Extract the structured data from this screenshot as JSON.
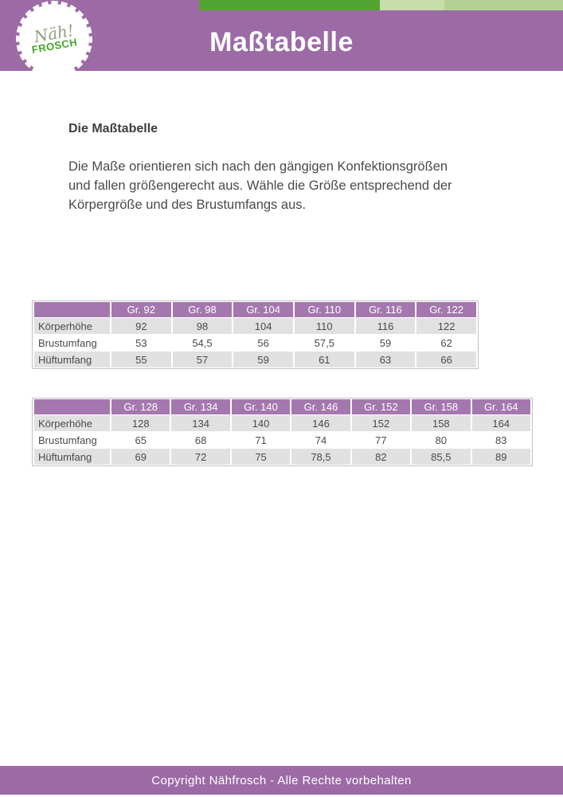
{
  "header": {
    "title": "Maßtabelle",
    "logo": {
      "line1": "Näh!",
      "line2": "FROSCH"
    }
  },
  "content": {
    "heading": "Die Maßtabelle",
    "paragraph_lines": [
      "Die Maße orientieren sich nach den gängigen Konfektionsgrößen",
      "und fallen größengerecht aus. Wähle die Größe entsprechend der",
      "Körpergröße und des Brustumfangs aus."
    ]
  },
  "tables": [
    {
      "columns": [
        "",
        "Gr. 92",
        "Gr. 98",
        "Gr. 104",
        "Gr. 110",
        "Gr. 116",
        "Gr. 122"
      ],
      "rows": [
        {
          "label": "Körperhöhe",
          "values": [
            "92",
            "98",
            "104",
            "110",
            "116",
            "122"
          ]
        },
        {
          "label": "Brustumfang",
          "values": [
            "53",
            "54,5",
            "56",
            "57,5",
            "59",
            "62"
          ]
        },
        {
          "label": "Hüftumfang",
          "values": [
            "55",
            "57",
            "59",
            "61",
            "63",
            "66"
          ]
        }
      ]
    },
    {
      "columns": [
        "",
        "Gr. 128",
        "Gr. 134",
        "Gr. 140",
        "Gr. 146",
        "Gr. 152",
        "Gr. 158",
        "Gr. 164"
      ],
      "rows": [
        {
          "label": "Körperhöhe",
          "values": [
            "128",
            "134",
            "140",
            "146",
            "152",
            "158",
            "164"
          ]
        },
        {
          "label": "Brustumfang",
          "values": [
            "65",
            "68",
            "71",
            "74",
            "77",
            "80",
            "83"
          ]
        },
        {
          "label": "Hüftumfang",
          "values": [
            "69",
            "72",
            "75",
            "78,5",
            "82",
            "85,5",
            "89"
          ]
        }
      ]
    }
  ],
  "footer": {
    "text": "Copyright Nähfrosch - Alle Rechte vorbehalten"
  },
  "colors": {
    "purple": "#9c6ba6",
    "table-header-purple": "#a478ae",
    "green-dark": "#54a431",
    "green-light-1": "#c9dcab",
    "green-light-2": "#b5d094",
    "logo-green": "#46a52e",
    "logo-script": "#93a083",
    "row-gray": "#e1e1e2",
    "text-dark": "#3e3e3e",
    "text-body": "#4a4a4a"
  }
}
